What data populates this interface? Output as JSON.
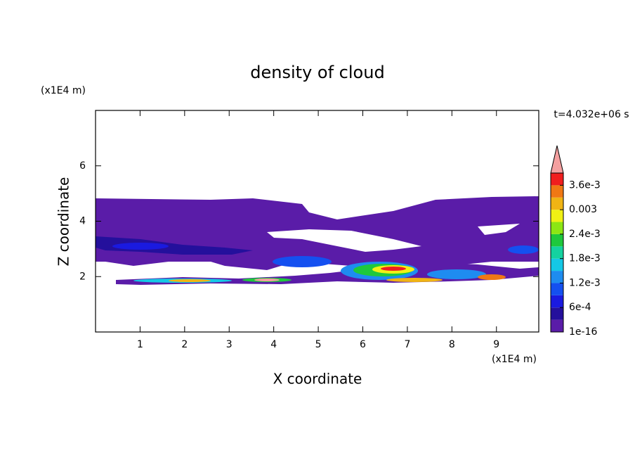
{
  "chart_data": {
    "type": "contour",
    "title": "density of cloud",
    "x_label": "X coordinate",
    "y_label": "Z coordinate",
    "x_unit": "(x1E4 m)",
    "y_unit": "(x1E4 m)",
    "time_label": "t=4.032e+06 s",
    "xlim": [
      0,
      9.95
    ],
    "ylim": [
      0,
      8
    ],
    "xticks": [
      1,
      2,
      3,
      4,
      5,
      6,
      7,
      8,
      9
    ],
    "yticks": [
      2,
      4,
      6
    ],
    "colorbar": {
      "range": [
        0,
        0.0039
      ],
      "colors": [
        "#5a1ca8",
        "#24109c",
        "#1a1ae0",
        "#1450f0",
        "#1e8cf0",
        "#14c8e6",
        "#14d2a0",
        "#1ec83c",
        "#8ce614",
        "#f0f014",
        "#f0b414",
        "#f07814",
        "#f01e1e"
      ],
      "extend_color": "#f4a0a0",
      "ticks": [
        1e-16,
        {
          "value": 0.0006,
          "label": "6e-4"
        },
        {
          "value": 0.0012,
          "label": "1.2e-3"
        },
        {
          "value": 0.0018,
          "label": "1.8e-3"
        },
        {
          "value": 0.0024,
          "label": "2.4e-3"
        },
        0.003,
        {
          "value": 0.0036,
          "label": "3.6e-3"
        }
      ]
    }
  }
}
